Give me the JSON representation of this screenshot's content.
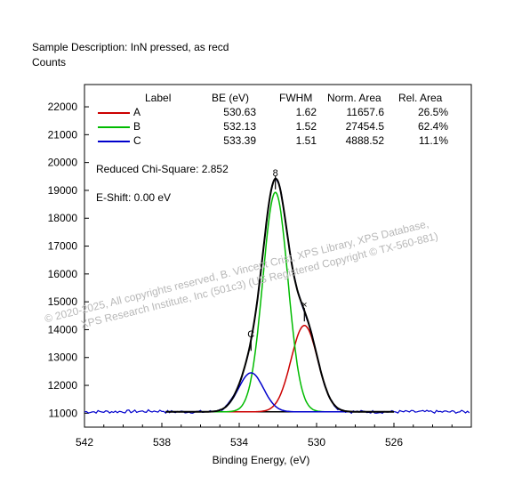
{
  "header": {
    "sample_description": "Sample Description:  InN pressed, as recd",
    "counts_label": "Counts"
  },
  "fit_table": {
    "headers": [
      "Label",
      "BE (eV)",
      "FWHM",
      "Norm. Area",
      "Rel. Area"
    ],
    "rows": [
      {
        "label": "A",
        "be": "530.63",
        "fwhm": "1.62",
        "norm_area": "11657.6",
        "rel_area": "26.5%",
        "color": "#cc0000"
      },
      {
        "label": "B",
        "be": "532.13",
        "fwhm": "1.52",
        "norm_area": "27454.5",
        "rel_area": "62.4%",
        "color": "#00bb00"
      },
      {
        "label": "C",
        "be": "533.39",
        "fwhm": "1.51",
        "norm_area": "4888.52",
        "rel_area": "11.1%",
        "color": "#0000cc"
      }
    ]
  },
  "chi_square": "Reduced Chi-Square: 2.852",
  "e_shift": "E-Shift: 0.00 eV",
  "watermark": {
    "line1": "©  2020-2025,  All copyrights reserved,   B. Vincent Crist,  XPS Library, XPS Database,",
    "line2": "XPS Research Institute, Inc (501c3)   (US Registered Copyright © TX-560-881)"
  },
  "chart_data": {
    "type": "line",
    "xlabel": "Binding Energy, (eV)",
    "ylabel": "Counts",
    "x_reversed": true,
    "xlim": [
      542,
      522
    ],
    "ylim": [
      10500,
      22800
    ],
    "x_ticks": [
      542,
      538,
      534,
      530,
      526
    ],
    "y_ticks": [
      11000,
      12000,
      13000,
      14000,
      15000,
      16000,
      17000,
      18000,
      19000,
      20000,
      21000,
      22000
    ],
    "background_counts": 11050,
    "peaks": [
      {
        "name": "A",
        "center": 530.63,
        "fwhm": 1.62,
        "height": 3100,
        "color": "#cc0000",
        "marker": "×"
      },
      {
        "name": "B",
        "center": 532.13,
        "fwhm": 1.52,
        "height": 7880,
        "color": "#00bb00",
        "marker": "8"
      },
      {
        "name": "C",
        "center": 533.39,
        "fwhm": 1.51,
        "height": 1400,
        "color": "#0000cc",
        "marker": "C"
      }
    ],
    "fit_range": [
      537.8,
      526.0
    ],
    "raw_range": [
      542,
      522
    ],
    "raw_data_color": "#0000cc",
    "envelope_color": "#000000"
  }
}
